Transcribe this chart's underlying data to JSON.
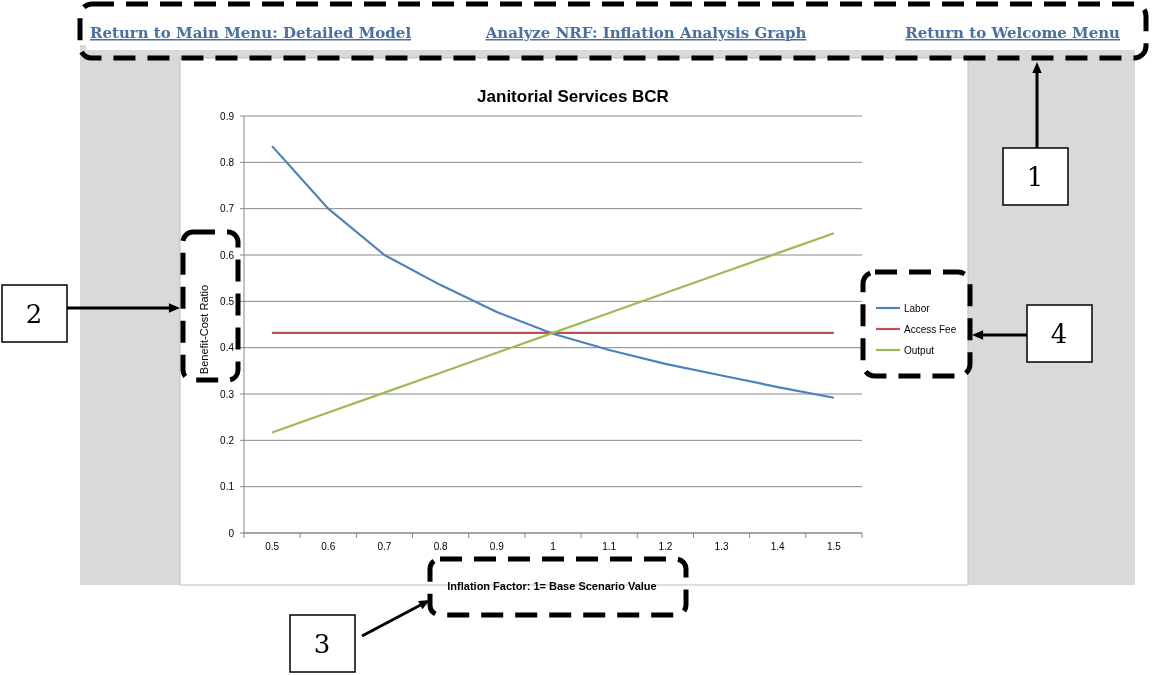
{
  "chart_data": {
    "type": "line",
    "title": "Janitorial Services BCR",
    "xlabel": "Inflation Factor: 1= Base Scenario Value",
    "ylabel": "Benefit-Cost Ratio",
    "categories": [
      "0.5",
      "0.6",
      "0.7",
      "0.8",
      "0.9",
      "1",
      "1.1",
      "1.2",
      "1.3",
      "1.4",
      "1.5"
    ],
    "series": [
      {
        "name": "Labor",
        "color": "#4f81bd",
        "values": [
          0.835,
          0.7,
          0.6,
          0.535,
          0.477,
          0.43,
          0.395,
          0.365,
          0.34,
          0.315,
          0.292
        ]
      },
      {
        "name": "Access Fee",
        "color": "#c0504d",
        "values": [
          0.432,
          0.432,
          0.432,
          0.432,
          0.432,
          0.432,
          0.432,
          0.432,
          0.432,
          0.432,
          0.432
        ]
      },
      {
        "name": "Output",
        "color": "#9bbb59",
        "values": [
          0.217,
          0.26,
          0.303,
          0.346,
          0.389,
          0.432,
          0.475,
          0.518,
          0.561,
          0.604,
          0.647
        ]
      }
    ],
    "ylim": [
      0,
      0.9
    ],
    "yticks": [
      0,
      0.1,
      0.2,
      0.3,
      0.4,
      0.5,
      0.6,
      0.7,
      0.8,
      0.9
    ],
    "grid": "y",
    "legend": "right",
    "marker": "none",
    "line_style": "solid",
    "annotations": [
      "Return to Main Menu: Detailed  Model",
      "Analyze NRF: Inflation Analysis Graph",
      "Return to Welcome Menu",
      "1",
      "2",
      "3",
      "4"
    ]
  }
}
